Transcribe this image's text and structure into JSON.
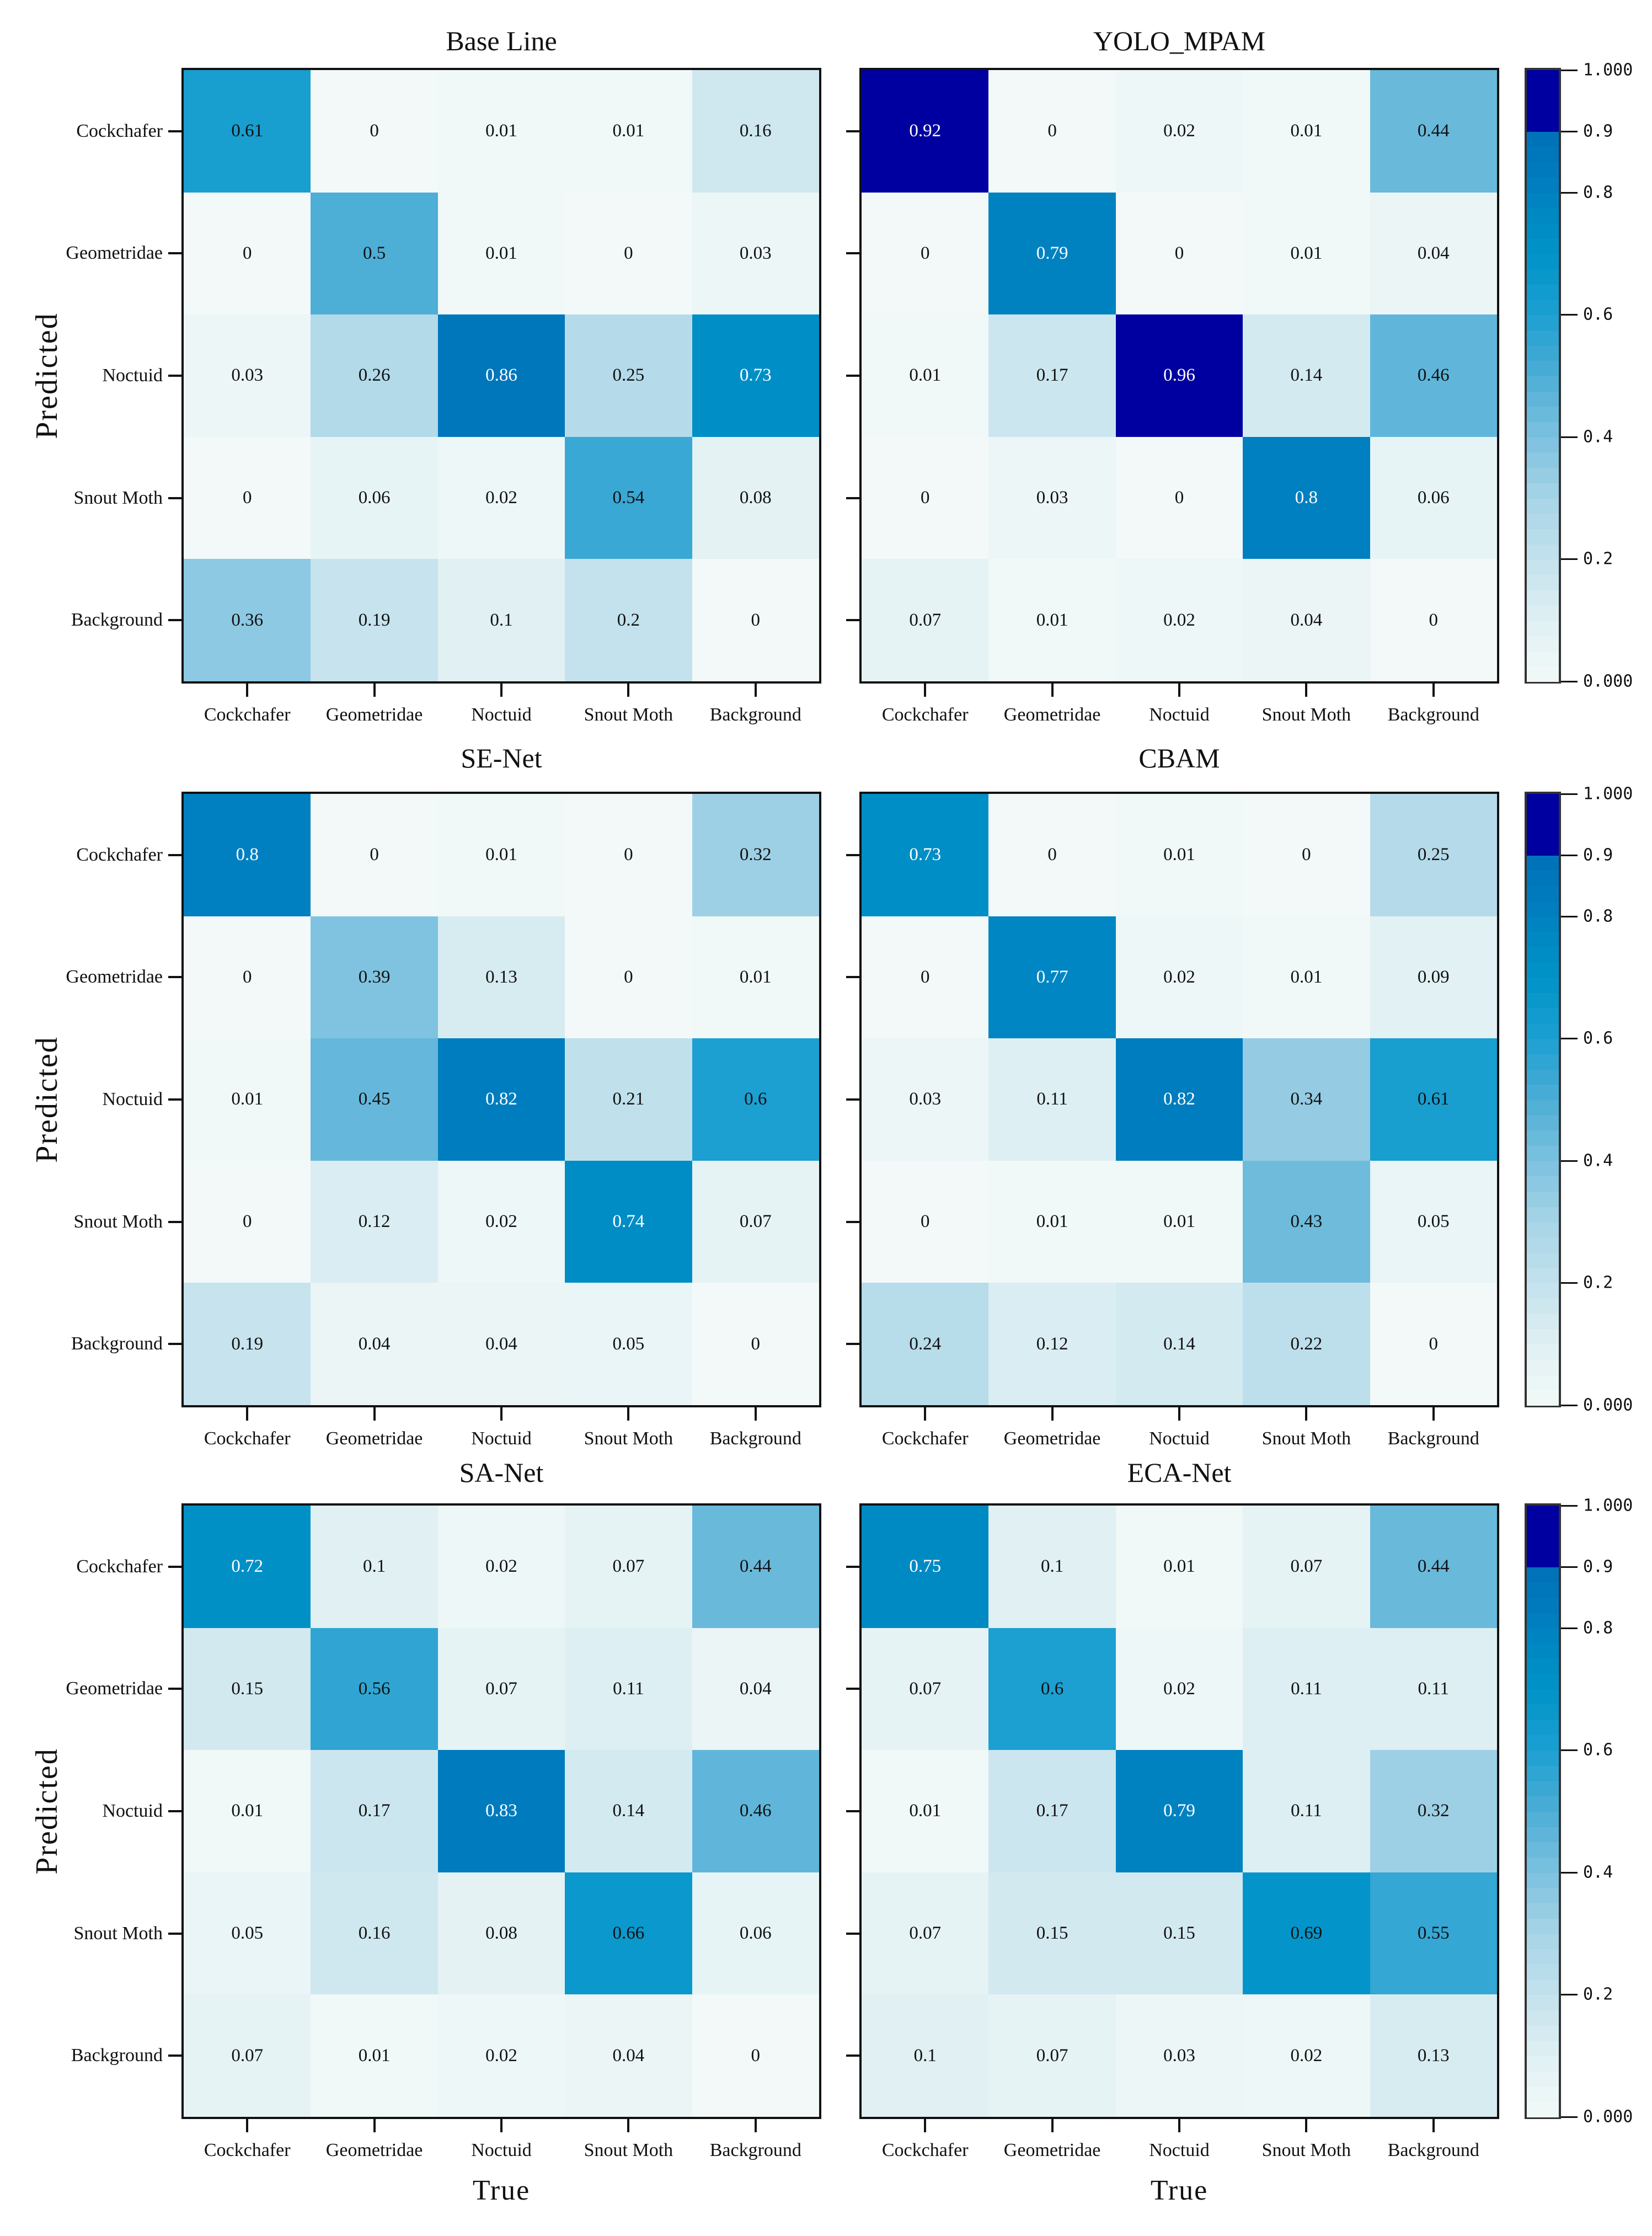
{
  "colors": {
    "low": "#f2f9f8",
    "mid": "#1aa0d0",
    "high": "#0070b8",
    "top": "#0000a0"
  },
  "chart_data": [
    {
      "type": "heatmap",
      "title": "Base Line",
      "ylabel": "Predicted",
      "xlabel": "",
      "x_labels": [
        "Cockchafer",
        "Geometridae",
        "Noctuid",
        "Snout Moth",
        "Background"
      ],
      "y_labels": [
        "Cockchafer",
        "Geometridae",
        "Noctuid",
        "Snout Moth",
        "Background"
      ],
      "values": [
        [
          0.61,
          0,
          0.01,
          0.01,
          0.16
        ],
        [
          0,
          0.5,
          0.01,
          0,
          0.03
        ],
        [
          0.03,
          0.26,
          0.86,
          0.25,
          0.73
        ],
        [
          0,
          0.06,
          0.02,
          0.54,
          0.08
        ],
        [
          0.36,
          0.19,
          0.1,
          0.2,
          0
        ]
      ]
    },
    {
      "type": "heatmap",
      "title": "YOLO_MPAM",
      "ylabel": "",
      "xlabel": "",
      "x_labels": [
        "Cockchafer",
        "Geometridae",
        "Noctuid",
        "Snout Moth",
        "Background"
      ],
      "y_labels": [],
      "values": [
        [
          0.92,
          0,
          0.02,
          0.01,
          0.44
        ],
        [
          0,
          0.79,
          0,
          0.01,
          0.04
        ],
        [
          0.01,
          0.17,
          0.96,
          0.14,
          0.46
        ],
        [
          0,
          0.03,
          0,
          0.8,
          0.06
        ],
        [
          0.07,
          0.01,
          0.02,
          0.04,
          0
        ]
      ]
    },
    {
      "type": "heatmap",
      "title": "SE-Net",
      "ylabel": "Predicted",
      "xlabel": "",
      "x_labels": [
        "Cockchafer",
        "Geometridae",
        "Noctuid",
        "Snout Moth",
        "Background"
      ],
      "y_labels": [
        "Cockchafer",
        "Geometridae",
        "Noctuid",
        "Snout Moth",
        "Background"
      ],
      "values": [
        [
          0.8,
          0,
          0.01,
          0,
          0.32
        ],
        [
          0,
          0.39,
          0.13,
          0,
          0.01
        ],
        [
          0.01,
          0.45,
          0.82,
          0.21,
          0.6
        ],
        [
          0,
          0.12,
          0.02,
          0.74,
          0.07
        ],
        [
          0.19,
          0.04,
          0.04,
          0.05,
          0
        ]
      ]
    },
    {
      "type": "heatmap",
      "title": "CBAM",
      "ylabel": "",
      "xlabel": "",
      "x_labels": [
        "Cockchafer",
        "Geometridae",
        "Noctuid",
        "Snout Moth",
        "Background"
      ],
      "y_labels": [],
      "values": [
        [
          0.73,
          0,
          0.01,
          0,
          0.25
        ],
        [
          0,
          0.77,
          0.02,
          0.01,
          0.09
        ],
        [
          0.03,
          0.11,
          0.82,
          0.34,
          0.61
        ],
        [
          0,
          0.01,
          0.01,
          0.43,
          0.05
        ],
        [
          0.24,
          0.12,
          0.14,
          0.22,
          0
        ]
      ]
    },
    {
      "type": "heatmap",
      "title": "SA-Net",
      "ylabel": "Predicted",
      "xlabel": "True",
      "x_labels": [
        "Cockchafer",
        "Geometridae",
        "Noctuid",
        "Snout Moth",
        "Background"
      ],
      "y_labels": [
        "Cockchafer",
        "Geometridae",
        "Noctuid",
        "Snout Moth",
        "Background"
      ],
      "values": [
        [
          0.72,
          0.1,
          0.02,
          0.07,
          0.44
        ],
        [
          0.15,
          0.56,
          0.07,
          0.11,
          0.04
        ],
        [
          0.01,
          0.17,
          0.83,
          0.14,
          0.46
        ],
        [
          0.05,
          0.16,
          0.08,
          0.66,
          0.06
        ],
        [
          0.07,
          0.01,
          0.02,
          0.04,
          0
        ]
      ]
    },
    {
      "type": "heatmap",
      "title": "ECA-Net",
      "ylabel": "",
      "xlabel": "True",
      "x_labels": [
        "Cockchafer",
        "Geometridae",
        "Noctuid",
        "Snout Moth",
        "Background"
      ],
      "y_labels": [],
      "values": [
        [
          0.75,
          0.1,
          0.01,
          0.07,
          0.44
        ],
        [
          0.07,
          0.6,
          0.02,
          0.11,
          0.11
        ],
        [
          0.01,
          0.17,
          0.79,
          0.11,
          0.32
        ],
        [
          0.07,
          0.15,
          0.15,
          0.69,
          0.55
        ],
        [
          0.1,
          0.07,
          0.03,
          0.02,
          0.13
        ]
      ]
    }
  ],
  "colorbar": {
    "range": [
      0,
      1
    ],
    "ticks": [
      {
        "value": 1.0,
        "label": "1.000"
      },
      {
        "value": 0.9,
        "label": "0.9"
      },
      {
        "value": 0.8,
        "label": "0.8"
      },
      {
        "value": 0.6,
        "label": "0.6"
      },
      {
        "value": 0.4,
        "label": "0.4"
      },
      {
        "value": 0.2,
        "label": "0.2"
      },
      {
        "value": 0.0,
        "label": "0.000"
      }
    ]
  }
}
